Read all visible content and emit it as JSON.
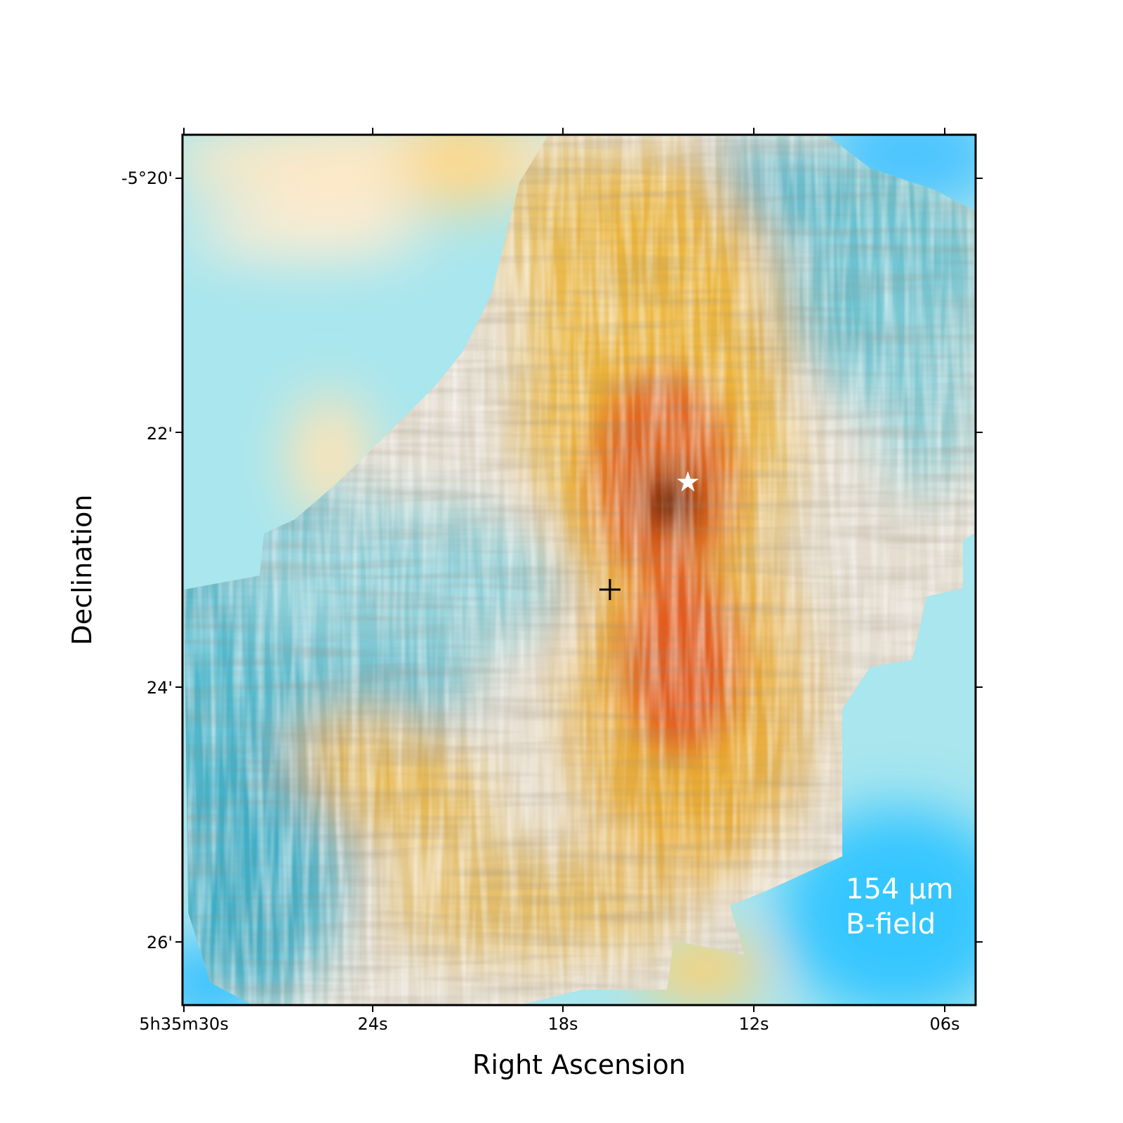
{
  "chart_data": {
    "type": "heatmap",
    "title": "",
    "xlabel": "Right Ascension",
    "ylabel": "Declination",
    "x_ticks": [
      "5h35m30s",
      "24s",
      "18s",
      "12s",
      "06s"
    ],
    "y_ticks": [
      "-5°20'",
      "22'",
      "24'",
      "26'"
    ],
    "panel_label": [
      "154 μm",
      "B-field"
    ],
    "overlay": "magnetic-field streamlines (line integral convolution texture)",
    "markers": [
      {
        "name": "star",
        "symbol": "★",
        "color": "#ffffff",
        "ra_sec": 14.1,
        "dec_arcmin": -22.37
      },
      {
        "name": "cross",
        "symbol": "+",
        "color": "#000000",
        "ra_sec": 16.5,
        "dec_arcmin": -23.23
      }
    ],
    "colormap": [
      "#35bfff",
      "#9fe7ef",
      "#fff2dc",
      "#f2c35a",
      "#e26a1c",
      "#2a0a0c"
    ],
    "grid": false
  }
}
